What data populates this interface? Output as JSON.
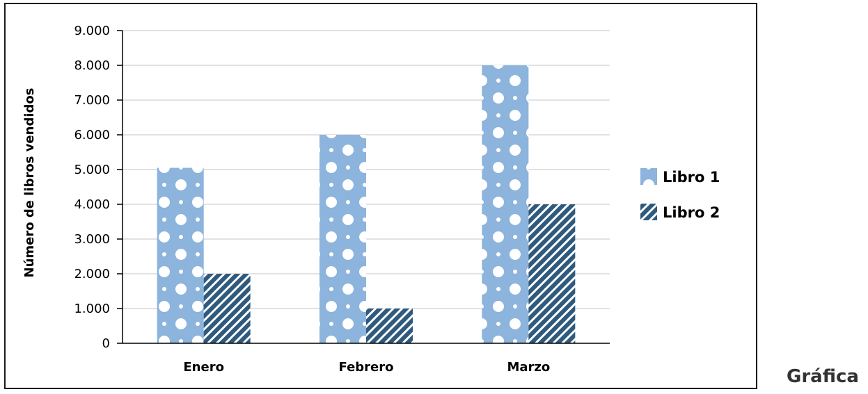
{
  "caption": "Gráfica",
  "chart_data": {
    "type": "bar",
    "categories": [
      "Enero",
      "Febrero",
      "Marzo"
    ],
    "series": [
      {
        "name": "Libro 1",
        "values": [
          5050,
          6000,
          8000
        ],
        "color": "#8cb4dc",
        "pattern": "dots"
      },
      {
        "name": "Libro 2",
        "values": [
          2000,
          1000,
          4000
        ],
        "color": "#2f5a7e",
        "pattern": "diagonal-stripes"
      }
    ],
    "title": "",
    "xlabel": "",
    "ylabel": "Número de libros vendidos",
    "ylim": [
      0,
      9000
    ],
    "yticks": [
      0,
      1000,
      2000,
      3000,
      4000,
      5000,
      6000,
      7000,
      8000,
      9000
    ],
    "ytick_labels": [
      "0",
      "1.000",
      "2.000",
      "3.000",
      "4.000",
      "5.000",
      "6.000",
      "7.000",
      "8.000",
      "9.000"
    ],
    "grid": true,
    "gridline_color": "#d0d0d0",
    "legend_position": "right"
  }
}
